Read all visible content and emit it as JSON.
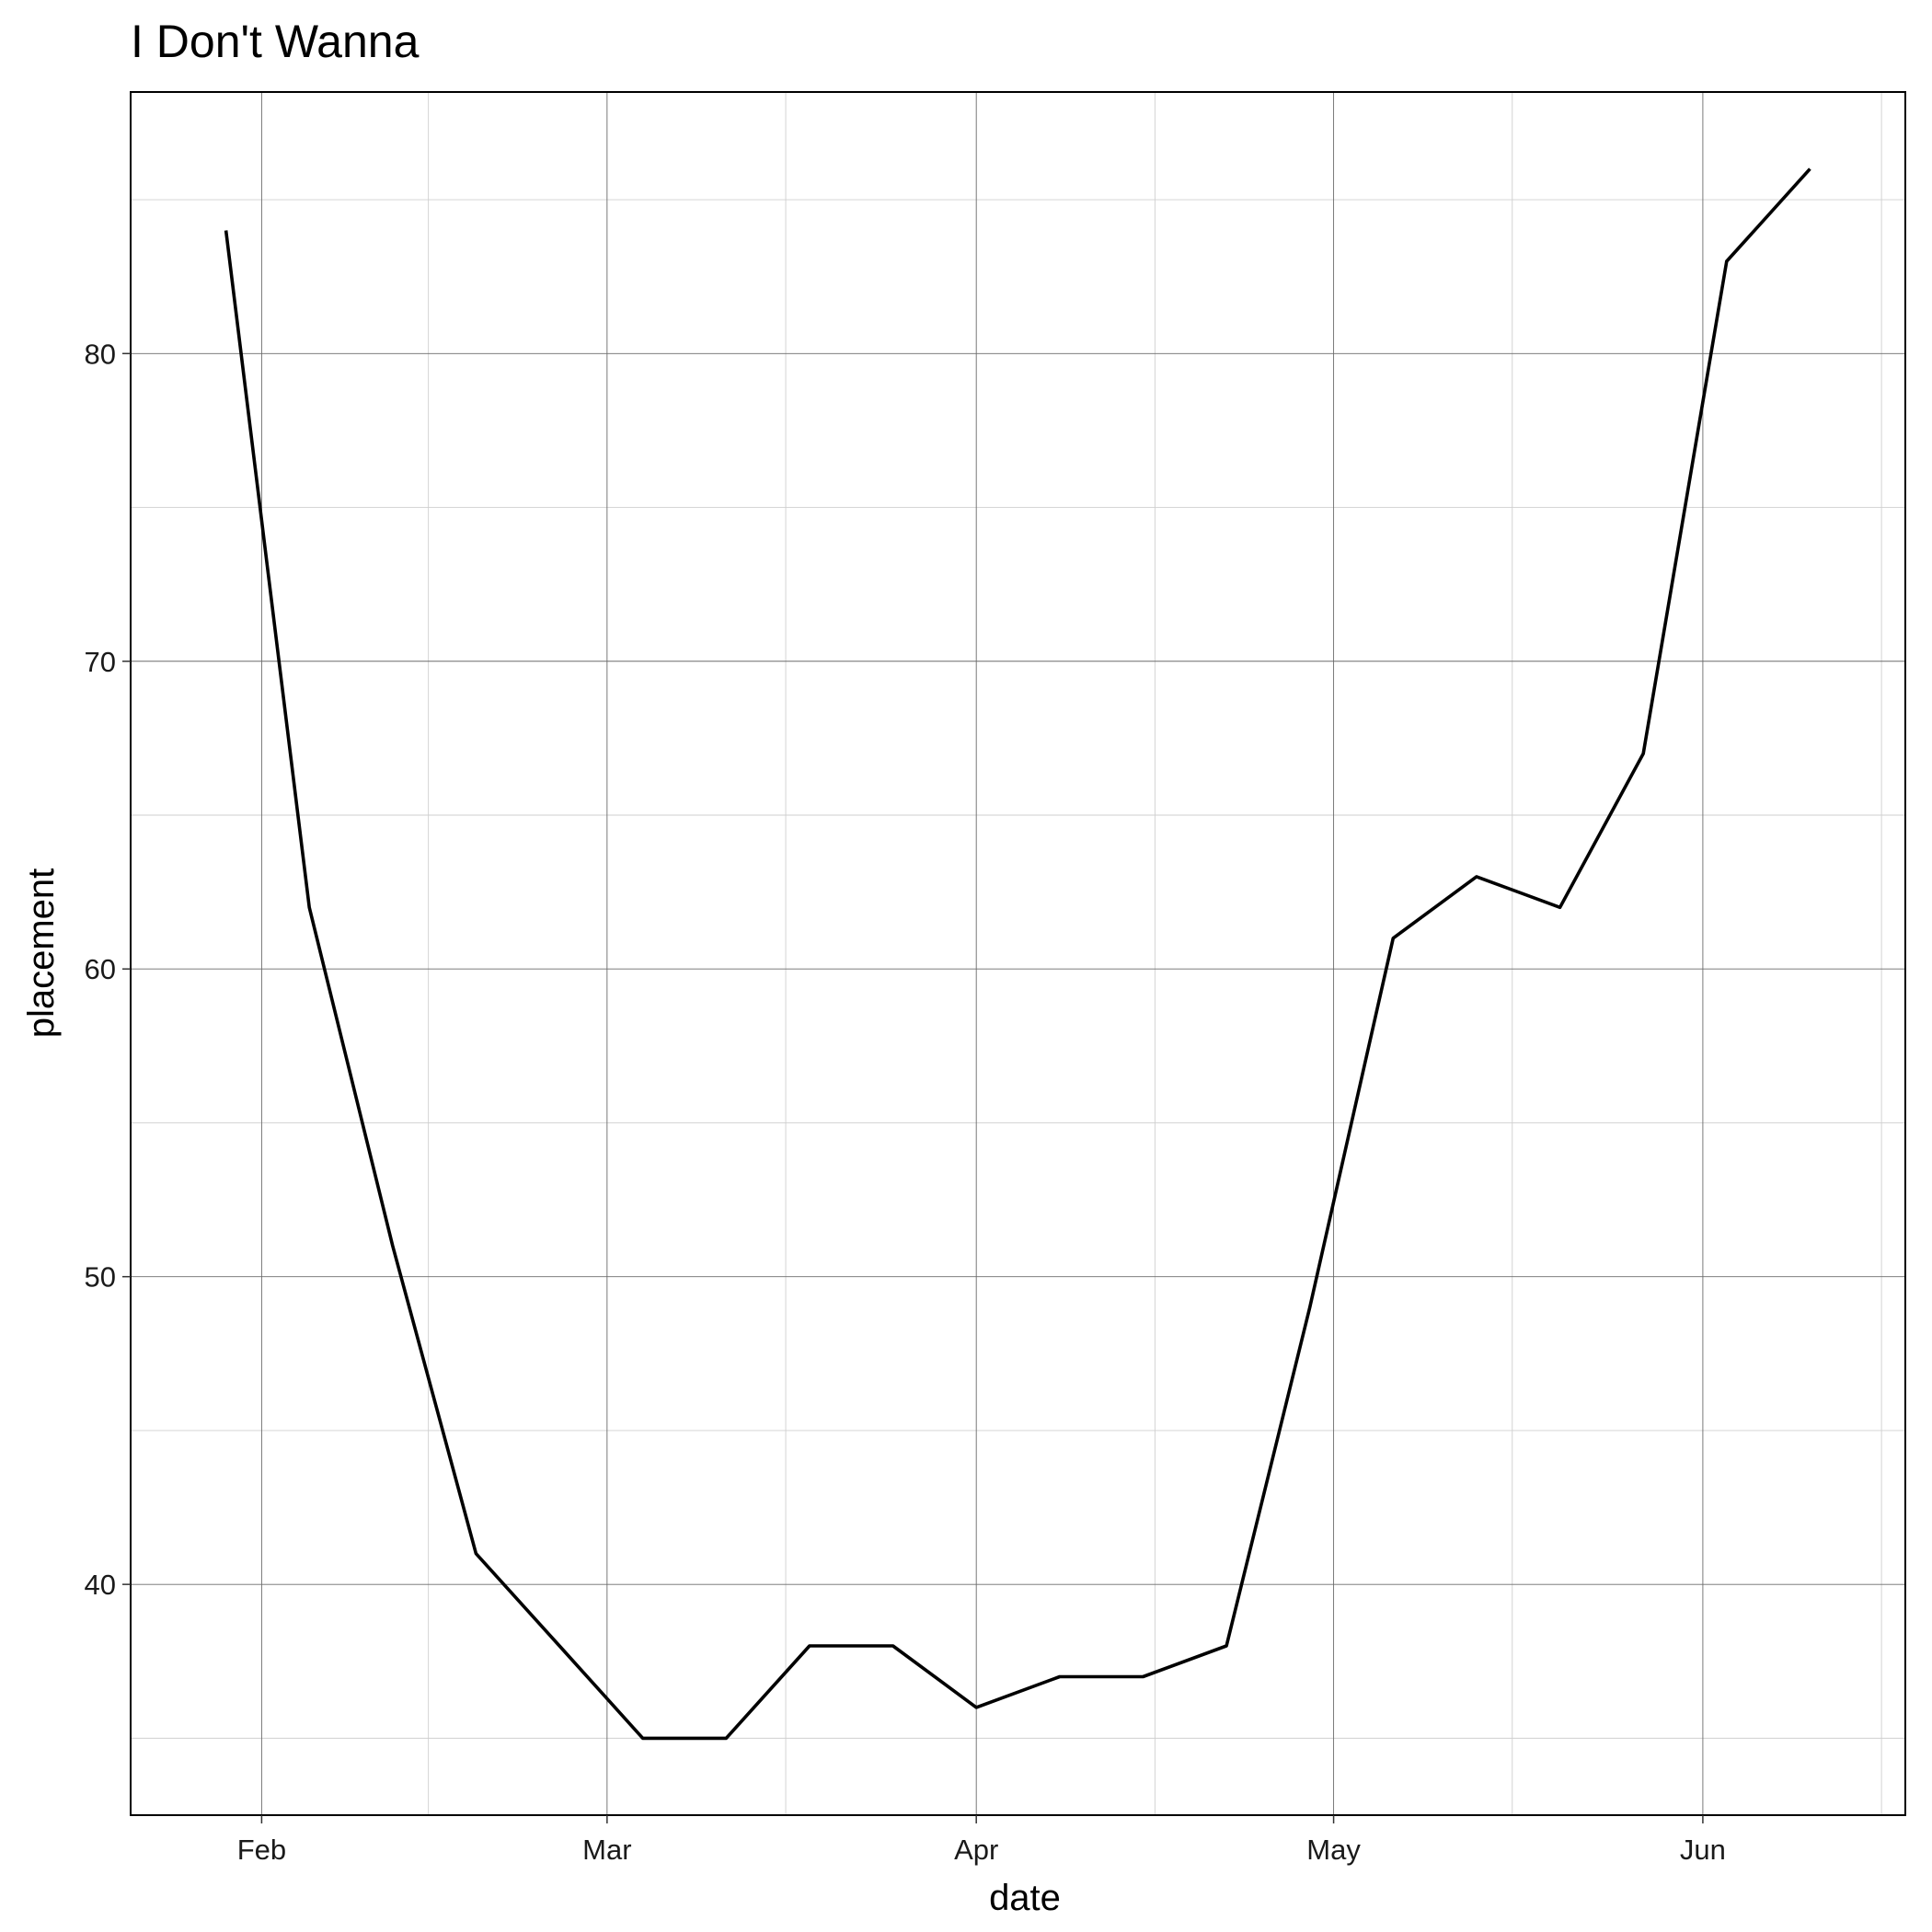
{
  "chart_data": {
    "type": "line",
    "title": "I Don't Wanna",
    "xlabel": "date",
    "ylabel": "placement",
    "xlim": [
      "2000-01-21",
      "2000-06-18"
    ],
    "ylim": [
      32.5,
      88.5
    ],
    "x_ticks": [
      {
        "date": "2000-02-01",
        "label": "Feb"
      },
      {
        "date": "2000-03-01",
        "label": "Mar"
      },
      {
        "date": "2000-04-01",
        "label": "Apr"
      },
      {
        "date": "2000-05-01",
        "label": "May"
      },
      {
        "date": "2000-06-01",
        "label": "Jun"
      }
    ],
    "x_minor_ticks": [
      "2000-02-15",
      "2000-03-16",
      "2000-04-16",
      "2000-05-16",
      "2000-06-16"
    ],
    "y_ticks": [
      40,
      50,
      60,
      70,
      80
    ],
    "y_minor_ticks": [
      35,
      45,
      55,
      65,
      75,
      85
    ],
    "grid": true,
    "legend": "none",
    "series_color": "#000000",
    "x": [
      "2000-01-29",
      "2000-02-05",
      "2000-02-12",
      "2000-02-19",
      "2000-02-26",
      "2000-03-04",
      "2000-03-11",
      "2000-03-18",
      "2000-03-25",
      "2000-04-01",
      "2000-04-08",
      "2000-04-15",
      "2000-04-22",
      "2000-04-29",
      "2000-05-06",
      "2000-05-13",
      "2000-05-20",
      "2000-05-27",
      "2000-06-03",
      "2000-06-10"
    ],
    "y": [
      84,
      62,
      51,
      41,
      38,
      35,
      35,
      38,
      38,
      36,
      37,
      37,
      38,
      49,
      61,
      63,
      62,
      67,
      83,
      86
    ]
  }
}
